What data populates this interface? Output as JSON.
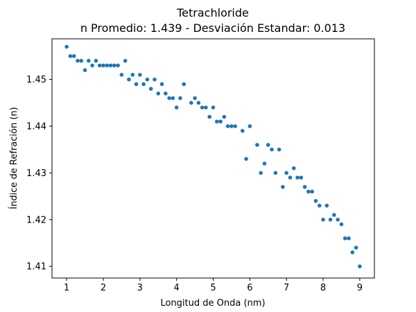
{
  "chart_data": {
    "type": "scatter",
    "title": "Tetrachloride",
    "subtitle": "n Promedio: 1.439 - Desviación Estandar: 0.013",
    "xlabel": "Longitud de Onda (nm)",
    "ylabel": "Índice de Refración (n)",
    "xlim": [
      0.6,
      9.4
    ],
    "ylim": [
      1.4075,
      1.4587
    ],
    "x_ticks": [
      1,
      2,
      3,
      4,
      5,
      6,
      7,
      8,
      9
    ],
    "y_ticks": [
      1.41,
      1.42,
      1.43,
      1.44,
      1.45
    ],
    "y_tick_labels": [
      "1.41",
      "1.42",
      "1.43",
      "1.44",
      "1.45"
    ],
    "grid": false,
    "marker_color": "#1f77b4",
    "series": [
      {
        "x": [
          1.0,
          1.1,
          1.2,
          1.3,
          1.4,
          1.5,
          1.6,
          1.7,
          1.8,
          1.9,
          2.0,
          2.1,
          2.2,
          2.3,
          2.4,
          2.5,
          2.6,
          2.7,
          2.8,
          2.9,
          3.0,
          3.1,
          3.2,
          3.3,
          3.4,
          3.5,
          3.6,
          3.7,
          3.8,
          3.9,
          4.0,
          4.1,
          4.2,
          4.4,
          4.5,
          4.6,
          4.7,
          4.8,
          4.9,
          5.0,
          5.1,
          5.2,
          5.3,
          5.4,
          5.5,
          5.6,
          5.8,
          5.9,
          6.0,
          6.2,
          6.3,
          6.4,
          6.5,
          6.6,
          6.7,
          6.8,
          6.9,
          7.0,
          7.1,
          7.2,
          7.3,
          7.4,
          7.5,
          7.6,
          7.7,
          7.8,
          7.9,
          8.0,
          8.1,
          8.2,
          8.3,
          8.4,
          8.5,
          8.6,
          8.7,
          8.8,
          8.9,
          9.0
        ],
        "y": [
          1.457,
          1.455,
          1.455,
          1.454,
          1.454,
          1.452,
          1.454,
          1.453,
          1.454,
          1.453,
          1.453,
          1.453,
          1.453,
          1.453,
          1.453,
          1.451,
          1.454,
          1.45,
          1.451,
          1.449,
          1.451,
          1.449,
          1.45,
          1.448,
          1.45,
          1.447,
          1.449,
          1.447,
          1.446,
          1.446,
          1.444,
          1.446,
          1.449,
          1.445,
          1.446,
          1.445,
          1.444,
          1.444,
          1.442,
          1.444,
          1.441,
          1.441,
          1.442,
          1.44,
          1.44,
          1.44,
          1.439,
          1.433,
          1.44,
          1.436,
          1.43,
          1.432,
          1.436,
          1.435,
          1.43,
          1.435,
          1.427,
          1.43,
          1.429,
          1.431,
          1.429,
          1.429,
          1.427,
          1.426,
          1.426,
          1.424,
          1.423,
          1.42,
          1.423,
          1.42,
          1.421,
          1.42,
          1.419,
          1.416,
          1.416,
          1.413,
          1.414,
          1.41
        ]
      }
    ]
  }
}
